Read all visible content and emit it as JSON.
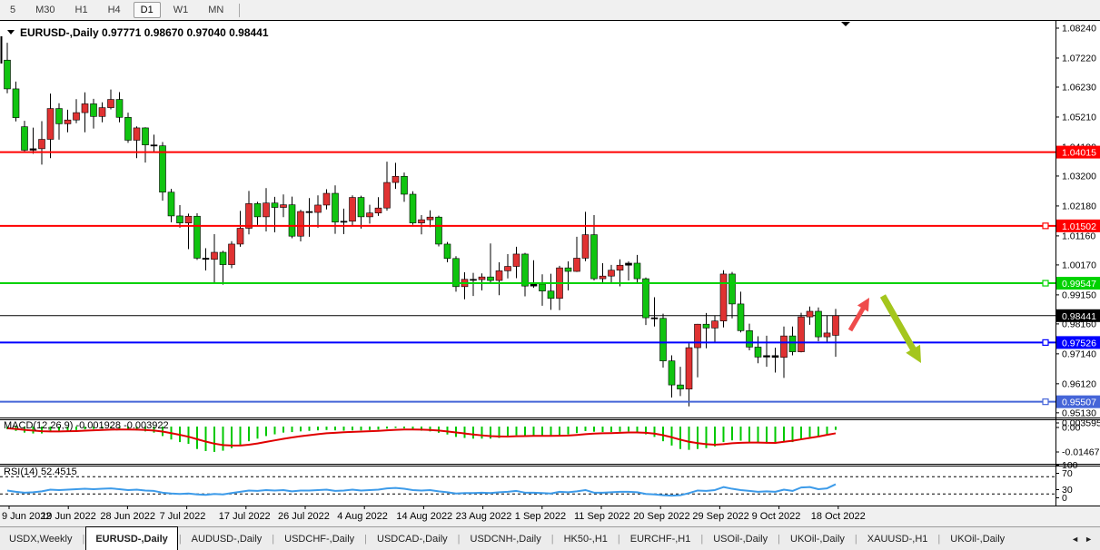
{
  "toolbar": {
    "periods": [
      "5",
      "M30",
      "H1",
      "H4",
      "D1",
      "W1",
      "MN"
    ],
    "active_period": "D1"
  },
  "title": {
    "symbol": "EURUSD-,Daily",
    "ohlc": "0.97771 0.98670 0.97040 0.98441"
  },
  "colors": {
    "bull": "#e03232",
    "bear": "#10c410",
    "wick": "#000000",
    "line_red": "#ff0000",
    "line_green": "#00d200",
    "line_blue": "#0000ff",
    "line_steel": "#4565d8",
    "bid_line": "#000000",
    "macd_hist": "#00c800",
    "macd_signal": "#e00000",
    "rsi_line": "#3d9be9",
    "arrow_up": "#ef4b4b",
    "arrow_down": "#a4c61d"
  },
  "chart_data": {
    "type": "candlestick",
    "symbol": "EURUSD-,Daily",
    "x_labels": [
      "9 Jun 2022",
      "19 Jun 2022",
      "28 Jun 2022",
      "7 Jul 2022",
      "17 Jul 2022",
      "26 Jul 2022",
      "4 Aug 2022",
      "14 Aug 2022",
      "23 Aug 2022",
      "1 Sep 2022",
      "11 Sep 2022",
      "20 Sep 2022",
      "29 Sep 2022",
      "9 Oct 2022",
      "18 Oct 2022"
    ],
    "y_axis_labels": [
      "1.08240",
      "1.07220",
      "1.06230",
      "1.05210",
      "1.04190",
      "1.03200",
      "1.02180",
      "1.01160",
      "1.00170",
      "0.99150",
      "0.98160",
      "0.97140",
      "0.96120",
      "0.95130"
    ],
    "price_lines": [
      {
        "price": 1.04015,
        "label": "1.04015",
        "color": "#ff0000",
        "width": 2,
        "handle": false
      },
      {
        "price": 1.01502,
        "label": "1.01502",
        "color": "#ff0000",
        "width": 2,
        "handle": true
      },
      {
        "price": 0.99547,
        "label": "0.99547",
        "color": "#00d200",
        "width": 2,
        "handle": true
      },
      {
        "price": 0.97526,
        "label": "0.97526",
        "color": "#0000ff",
        "width": 2,
        "handle": true
      },
      {
        "price": 0.95507,
        "label": "0.95507",
        "color": "#4565d8",
        "width": 2,
        "handle": true
      }
    ],
    "bid_price": {
      "price": 0.98441,
      "label": "0.98441",
      "color": "#000000"
    },
    "candles": [
      [
        1.0715,
        1.0774,
        1.0602,
        1.0617
      ],
      [
        1.0617,
        1.0642,
        1.0506,
        1.0519
      ],
      [
        1.0488,
        1.0508,
        1.0399,
        1.0408
      ],
      [
        1.0408,
        1.0485,
        1.0396,
        1.0413
      ],
      [
        1.0413,
        1.0507,
        1.0359,
        1.0445
      ],
      [
        1.0445,
        1.0601,
        1.0381,
        1.055
      ],
      [
        1.055,
        1.0568,
        1.0444,
        1.0498
      ],
      [
        1.0498,
        1.0546,
        1.0469,
        1.0511
      ],
      [
        1.0511,
        1.0582,
        1.05,
        1.0536
      ],
      [
        1.0536,
        1.0605,
        1.0469,
        1.0566
      ],
      [
        1.0566,
        1.0583,
        1.0482,
        1.0523
      ],
      [
        1.0523,
        1.0571,
        1.0503,
        1.0553
      ],
      [
        1.0553,
        1.0615,
        1.0547,
        1.0581
      ],
      [
        1.0581,
        1.0606,
        1.0503,
        1.052
      ],
      [
        1.052,
        1.0536,
        1.0433,
        1.0442
      ],
      [
        1.0442,
        1.0489,
        1.0381,
        1.0484
      ],
      [
        1.0484,
        1.0486,
        1.0366,
        1.0426
      ],
      [
        1.0426,
        1.0461,
        1.04,
        1.0423
      ],
      [
        1.0423,
        1.0436,
        1.0236,
        1.0265
      ],
      [
        1.0265,
        1.0276,
        1.0162,
        1.0184
      ],
      [
        1.0184,
        1.0221,
        1.0144,
        1.016
      ],
      [
        1.016,
        1.0192,
        1.0071,
        1.0183
      ],
      [
        1.0183,
        1.0193,
        1.0034,
        1.004
      ],
      [
        1.004,
        1.0074,
        0.9998,
        1.0036
      ],
      [
        1.0036,
        1.0122,
        0.9952,
        1.006
      ],
      [
        1.006,
        1.0065,
        0.995,
        1.0018
      ],
      [
        1.0018,
        1.0098,
        1.0006,
        1.0088
      ],
      [
        1.0088,
        1.0201,
        1.0079,
        1.0142
      ],
      [
        1.0142,
        1.0269,
        1.0121,
        1.0226
      ],
      [
        1.0226,
        1.0232,
        1.0153,
        1.0181
      ],
      [
        1.0181,
        1.0279,
        1.0131,
        1.0228
      ],
      [
        1.0228,
        1.0249,
        1.0128,
        1.0213
      ],
      [
        1.0213,
        1.0257,
        1.018,
        1.0222
      ],
      [
        1.0222,
        1.025,
        1.0108,
        1.0115
      ],
      [
        1.0115,
        1.0205,
        1.0097,
        1.0199
      ],
      [
        1.0199,
        1.0245,
        1.0113,
        1.0196
      ],
      [
        1.0196,
        1.0254,
        1.0144,
        1.0221
      ],
      [
        1.0221,
        1.0275,
        1.0206,
        1.0261
      ],
      [
        1.0261,
        1.0288,
        1.0123,
        1.0163
      ],
      [
        1.0163,
        1.0209,
        1.0122,
        1.0166
      ],
      [
        1.0166,
        1.0254,
        1.0151,
        1.0247
      ],
      [
        1.0247,
        1.0253,
        1.0141,
        1.0181
      ],
      [
        1.0181,
        1.0222,
        1.0158,
        1.0194
      ],
      [
        1.0194,
        1.0248,
        1.0184,
        1.0211
      ],
      [
        1.0211,
        1.0369,
        1.0202,
        1.0298
      ],
      [
        1.0298,
        1.0365,
        1.0276,
        1.0319
      ],
      [
        1.0319,
        1.0332,
        1.0232,
        1.0258
      ],
      [
        1.0258,
        1.0268,
        1.0154,
        1.016
      ],
      [
        1.016,
        1.0187,
        1.0121,
        1.0171
      ],
      [
        1.0171,
        1.0203,
        1.0146,
        1.018
      ],
      [
        1.018,
        1.0185,
        1.008,
        1.0088
      ],
      [
        1.0088,
        1.0095,
        1.0026,
        1.0039
      ],
      [
        1.0039,
        1.0047,
        0.9926,
        0.9943
      ],
      [
        0.9943,
        0.9992,
        0.99,
        0.9968
      ],
      [
        0.9968,
        0.999,
        0.9911,
        0.9967
      ],
      [
        0.9967,
        0.9988,
        0.993,
        0.9976
      ],
      [
        0.9976,
        1.009,
        0.9957,
        0.9964
      ],
      [
        0.9964,
        1.0026,
        0.9914,
        0.9997
      ],
      [
        0.9997,
        1.0054,
        0.9971,
        1.0012
      ],
      [
        1.0012,
        1.0079,
        0.9972,
        1.0054
      ],
      [
        1.0054,
        1.0058,
        0.991,
        0.9945
      ],
      [
        0.9945,
        1.0033,
        0.9939,
        0.9952
      ],
      [
        0.9952,
        0.9985,
        0.9878,
        0.9928
      ],
      [
        0.9928,
        0.9987,
        0.9864,
        0.9903
      ],
      [
        0.9903,
        1.0014,
        0.9863,
        1.0007
      ],
      [
        1.0007,
        1.0029,
        0.993,
        0.9995
      ],
      [
        0.9995,
        1.0113,
        0.9993,
        1.004
      ],
      [
        1.004,
        1.0198,
        1.003,
        1.012
      ],
      [
        1.012,
        1.0187,
        0.9964,
        0.997
      ],
      [
        0.997,
        1.0023,
        0.9955,
        0.9979
      ],
      [
        0.9979,
        1.0017,
        0.9954,
        0.9999
      ],
      [
        0.9999,
        1.0036,
        0.9944,
        1.0016
      ],
      [
        1.0016,
        1.0029,
        0.9964,
        1.0023
      ],
      [
        1.0023,
        1.0051,
        0.9954,
        0.997
      ],
      [
        0.997,
        0.9974,
        0.9812,
        0.9837
      ],
      [
        0.9837,
        0.9907,
        0.9807,
        0.9835
      ],
      [
        0.9835,
        0.9851,
        0.9667,
        0.969
      ],
      [
        0.969,
        0.9709,
        0.9565,
        0.9608
      ],
      [
        0.9608,
        0.967,
        0.957,
        0.9594
      ],
      [
        0.9594,
        0.975,
        0.9535,
        0.9735
      ],
      [
        0.9735,
        0.9816,
        0.9634,
        0.9815
      ],
      [
        0.9815,
        0.9853,
        0.9733,
        0.9802
      ],
      [
        0.9802,
        0.9844,
        0.9752,
        0.9826
      ],
      [
        0.9826,
        0.9999,
        0.9804,
        0.9986
      ],
      [
        0.9986,
        0.9993,
        0.9835,
        0.9884
      ],
      [
        0.9884,
        0.9926,
        0.9787,
        0.9793
      ],
      [
        0.9793,
        0.9817,
        0.9726,
        0.9737
      ],
      [
        0.9737,
        0.9774,
        0.9682,
        0.9703
      ],
      [
        0.9703,
        0.9776,
        0.967,
        0.9708
      ],
      [
        0.9708,
        0.9735,
        0.965,
        0.9702
      ],
      [
        0.9702,
        0.9807,
        0.9632,
        0.9775
      ],
      [
        0.9775,
        0.9807,
        0.9709,
        0.9721
      ],
      [
        0.9721,
        0.9854,
        0.9719,
        0.984
      ],
      [
        0.984,
        0.9875,
        0.9813,
        0.9859
      ],
      [
        0.9859,
        0.9872,
        0.9757,
        0.9772
      ],
      [
        0.9772,
        0.9845,
        0.9755,
        0.9785
      ],
      [
        0.97771,
        0.9867,
        0.9704,
        0.98441
      ]
    ],
    "macd": {
      "label": "MACD(12,26,9)",
      "current_main": "-0.001928",
      "current_signal": "-0.003922",
      "y_labels": [
        "0.003595",
        "0.00",
        "-0.014675"
      ],
      "histogram": [
        -1.5,
        -2.5,
        -3.5,
        -4.0,
        -4.0,
        -3.2,
        -2.8,
        -2.4,
        -2.0,
        -1.6,
        -1.4,
        -1.2,
        -1.0,
        -1.2,
        -1.8,
        -2.2,
        -2.8,
        -3.5,
        -5.5,
        -7.5,
        -9.0,
        -10.0,
        -13.0,
        -14.2,
        -14.7,
        -14.0,
        -12.5,
        -10.5,
        -8.5,
        -7.0,
        -5.5,
        -4.5,
        -3.5,
        -3.2,
        -2.8,
        -2.5,
        -2.2,
        -2.0,
        -2.2,
        -2.4,
        -2.2,
        -2.2,
        -2.0,
        -1.8,
        -1.2,
        -0.8,
        -1.0,
        -1.8,
        -2.4,
        -2.8,
        -3.6,
        -4.6,
        -6.0,
        -6.6,
        -7.0,
        -7.0,
        -7.0,
        -6.6,
        -6.0,
        -5.0,
        -5.0,
        -5.0,
        -5.2,
        -5.6,
        -5.0,
        -4.6,
        -3.8,
        -2.6,
        -3.0,
        -3.2,
        -3.2,
        -3.0,
        -2.8,
        -3.2,
        -4.5,
        -6.0,
        -8.5,
        -11.0,
        -13.0,
        -13.5,
        -13.0,
        -12.5,
        -11.5,
        -9.0,
        -8.0,
        -8.2,
        -8.8,
        -9.5,
        -9.8,
        -10.0,
        -9.0,
        -9.0,
        -7.5,
        -6.0,
        -5.5,
        -4.5,
        -1.928
      ],
      "signal": [
        -1.0,
        -1.4,
        -1.9,
        -2.3,
        -2.7,
        -2.8,
        -2.8,
        -2.7,
        -2.6,
        -2.4,
        -2.2,
        -2.0,
        -1.8,
        -1.7,
        -1.7,
        -1.8,
        -2.0,
        -2.3,
        -2.9,
        -3.8,
        -4.8,
        -5.9,
        -7.3,
        -8.7,
        -9.9,
        -10.7,
        -11.0,
        -11.0,
        -10.5,
        -9.8,
        -8.9,
        -8.0,
        -7.1,
        -6.3,
        -5.6,
        -5.0,
        -4.4,
        -3.9,
        -3.6,
        -3.3,
        -3.1,
        -2.9,
        -2.7,
        -2.5,
        -2.2,
        -1.9,
        -1.7,
        -1.7,
        -1.8,
        -2.0,
        -2.3,
        -2.8,
        -3.4,
        -4.0,
        -4.6,
        -5.1,
        -5.5,
        -5.7,
        -5.8,
        -5.6,
        -5.5,
        -5.4,
        -5.4,
        -5.4,
        -5.3,
        -5.2,
        -4.9,
        -4.4,
        -4.1,
        -3.9,
        -3.8,
        -3.6,
        -3.4,
        -3.4,
        -3.6,
        -4.1,
        -5.0,
        -6.2,
        -7.6,
        -8.8,
        -9.6,
        -10.2,
        -10.5,
        -10.2,
        -9.7,
        -9.4,
        -9.3,
        -9.3,
        -9.4,
        -9.5,
        -8.8,
        -8.2,
        -7.4,
        -6.6,
        -5.8,
        -4.8,
        -3.922
      ]
    },
    "rsi": {
      "label": "RSI(14)",
      "current": "52.4515",
      "y_labels": [
        "100",
        "70",
        "30",
        "0"
      ],
      "levels": [
        70,
        30
      ],
      "series": [
        38,
        35,
        33,
        34,
        36,
        40,
        39,
        40,
        41,
        42,
        41,
        42,
        43,
        41,
        39,
        40,
        38,
        37,
        33,
        31,
        30,
        31,
        29,
        28,
        30,
        29,
        32,
        35,
        38,
        37,
        39,
        38,
        39,
        36,
        38,
        38,
        39,
        40,
        37,
        38,
        40,
        38,
        39,
        40,
        43,
        44,
        42,
        39,
        38,
        39,
        36,
        34,
        31,
        32,
        32,
        33,
        32,
        34,
        35,
        37,
        33,
        33,
        32,
        31,
        35,
        34,
        36,
        39,
        33,
        33,
        34,
        35,
        35,
        34,
        30,
        29,
        27,
        26,
        27,
        32,
        38,
        37,
        39,
        46,
        42,
        39,
        37,
        35,
        36,
        35,
        40,
        37,
        45,
        46,
        41,
        43,
        52.45
      ]
    },
    "annotations": [
      {
        "name": "up-arrow",
        "color": "#ef4b4b"
      },
      {
        "name": "down-arrow",
        "color": "#a4c61d"
      }
    ]
  },
  "tabs": {
    "items": [
      {
        "label": "USDX,Weekly",
        "active": false
      },
      {
        "label": "EURUSD-,Daily",
        "active": true
      },
      {
        "label": "AUDUSD-,Daily",
        "active": false
      },
      {
        "label": "USDCHF-,Daily",
        "active": false
      },
      {
        "label": "USDCAD-,Daily",
        "active": false
      },
      {
        "label": "USDCNH-,Daily",
        "active": false
      },
      {
        "label": "HK50-,H1",
        "active": false
      },
      {
        "label": "EURCHF-,H1",
        "active": false
      },
      {
        "label": "USOil-,Daily",
        "active": false
      },
      {
        "label": "UKOil-,Daily",
        "active": false
      },
      {
        "label": "XAUUSD-,H1",
        "active": false
      },
      {
        "label": "UKOil-,Daily",
        "active": false
      }
    ],
    "scroll_left": "◄",
    "scroll_right": "►"
  }
}
